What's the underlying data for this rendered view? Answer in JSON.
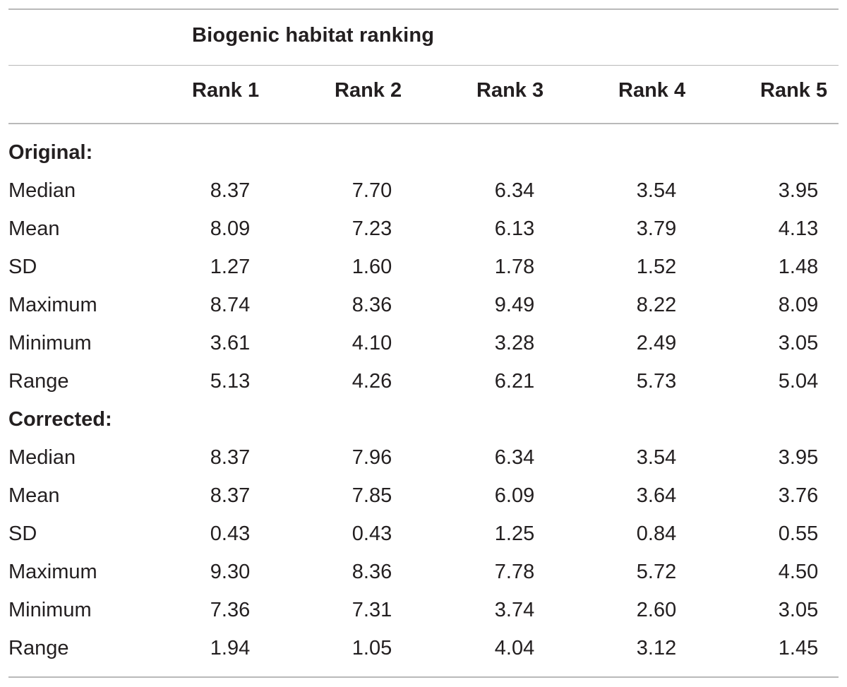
{
  "table": {
    "title": "Biogenic habitat ranking",
    "columns": [
      "Rank 1",
      "Rank 2",
      "Rank 3",
      "Rank 4",
      "Rank 5"
    ],
    "sections": [
      {
        "label": "Original:",
        "rows": [
          {
            "label": "Median",
            "values": [
              "8.37",
              "7.70",
              "6.34",
              "3.54",
              "3.95"
            ]
          },
          {
            "label": "Mean",
            "values": [
              "8.09",
              "7.23",
              "6.13",
              "3.79",
              "4.13"
            ]
          },
          {
            "label": "SD",
            "values": [
              "1.27",
              "1.60",
              "1.78",
              "1.52",
              "1.48"
            ]
          },
          {
            "label": "Maximum",
            "values": [
              "8.74",
              "8.36",
              "9.49",
              "8.22",
              "8.09"
            ]
          },
          {
            "label": "Minimum",
            "values": [
              "3.61",
              "4.10",
              "3.28",
              "2.49",
              "3.05"
            ]
          },
          {
            "label": "Range",
            "values": [
              "5.13",
              "4.26",
              "6.21",
              "5.73",
              "5.04"
            ]
          }
        ]
      },
      {
        "label": "Corrected:",
        "rows": [
          {
            "label": "Median",
            "values": [
              "8.37",
              "7.96",
              "6.34",
              "3.54",
              "3.95"
            ]
          },
          {
            "label": "Mean",
            "values": [
              "8.37",
              "7.85",
              "6.09",
              "3.64",
              "3.76"
            ]
          },
          {
            "label": "SD",
            "values": [
              "0.43",
              "0.43",
              "1.25",
              "0.84",
              "0.55"
            ]
          },
          {
            "label": "Maximum",
            "values": [
              "9.30",
              "8.36",
              "7.78",
              "5.72",
              "4.50"
            ]
          },
          {
            "label": "Minimum",
            "values": [
              "7.36",
              "7.31",
              "3.74",
              "2.60",
              "3.05"
            ]
          },
          {
            "label": "Range",
            "values": [
              "1.94",
              "1.05",
              "4.04",
              "3.12",
              "1.45"
            ]
          }
        ]
      }
    ]
  }
}
